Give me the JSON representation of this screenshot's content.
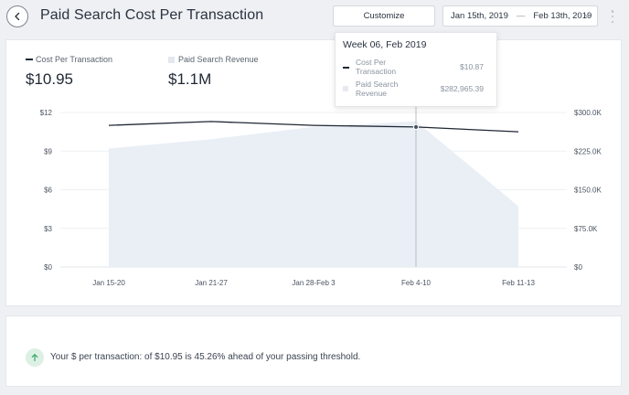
{
  "header": {
    "title": "Paid Search Cost Per Transaction",
    "customize_label": "Customize",
    "date_start": "Jan 15th, 2019",
    "date_separator": "—",
    "date_end": "Feb 13th, 2019"
  },
  "metrics": {
    "cpt_label": "Cost Per Transaction",
    "cpt_value": "$10.95",
    "revenue_label": "Paid Search Revenue",
    "revenue_value": "$1.1M"
  },
  "tooltip": {
    "title": "Week 06, Feb 2019",
    "row1_label": "Cost Per Transaction",
    "row1_value": "$10.87",
    "row2_label": "Paid Search Revenue",
    "row2_value": "$282,965.39"
  },
  "chart_data": {
    "type": "line",
    "categories": [
      "Jan 15-20",
      "Jan 21-27",
      "Jan 28-Feb 3",
      "Feb 4-10",
      "Feb 11-13"
    ],
    "left_axis": {
      "ticks": [
        "$0",
        "$3",
        "$6",
        "$9",
        "$12"
      ],
      "range": [
        0,
        12
      ]
    },
    "right_axis": {
      "ticks": [
        "$0",
        "$75.0K",
        "$150.0K",
        "$225.0K",
        "$300.0K"
      ],
      "range": [
        0,
        300000
      ]
    },
    "series": [
      {
        "name": "Cost Per Transaction",
        "axis": "left",
        "kind": "line",
        "color": "#1f2733",
        "values": [
          11.0,
          11.3,
          11.0,
          10.87,
          10.5
        ]
      },
      {
        "name": "Paid Search Revenue",
        "axis": "right",
        "kind": "area",
        "color": "#e6ecf4",
        "values": [
          230000,
          248000,
          272000,
          282965.39,
          118000
        ]
      }
    ],
    "highlight_index": 3
  },
  "info": {
    "message": "Your $ per transaction: of $10.95 is 45.26% ahead of your passing threshold.",
    "icon": "arrow-up-icon",
    "icon_color": "#3aa86b"
  }
}
